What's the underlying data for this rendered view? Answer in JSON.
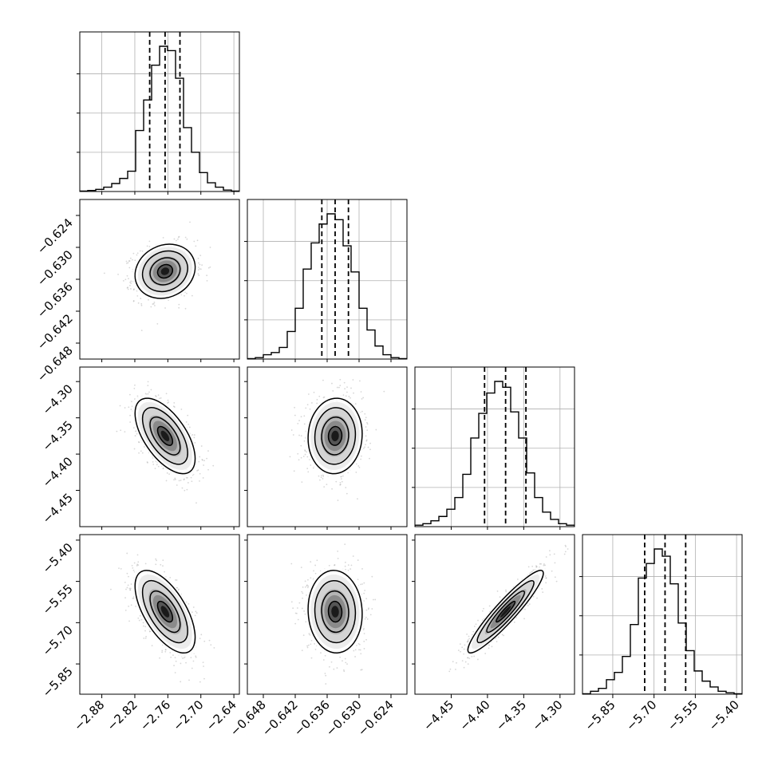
{
  "chart_data": {
    "type": "corner",
    "parameters": [
      {
        "mean": -2.765,
        "sd": 0.0273,
        "range": [
          -2.92,
          -2.63
        ],
        "quantiles": [
          -2.793,
          -2.765,
          -2.738
        ],
        "ticks": [
          -2.88,
          -2.82,
          -2.76,
          -2.7,
          -2.64
        ],
        "tick_labels": [
          "−2.88",
          "−2.82",
          "−2.76",
          "−2.70",
          "−2.64"
        ],
        "histogram": [
          0.003,
          0.007,
          0.015,
          0.03,
          0.055,
          0.09,
          0.14,
          0.42,
          0.63,
          0.87,
          1.0,
          0.97,
          0.78,
          0.44,
          0.27,
          0.13,
          0.06,
          0.03,
          0.01,
          0.003
        ]
      },
      {
        "mean": -0.6345,
        "sd": 0.00254,
        "range": [
          -0.651,
          -0.621
        ],
        "quantiles": [
          -0.637,
          -0.6345,
          -0.632
        ],
        "ticks": [
          -0.648,
          -0.642,
          -0.636,
          -0.63,
          -0.624
        ],
        "tick_labels": [
          "−0.648",
          "−0.642",
          "−0.636",
          "−0.630",
          "−0.624"
        ],
        "histogram": [
          0.003,
          0.01,
          0.03,
          0.045,
          0.08,
          0.19,
          0.35,
          0.62,
          0.8,
          0.93,
          1.0,
          0.96,
          0.78,
          0.6,
          0.35,
          0.2,
          0.09,
          0.03,
          0.01,
          0.003
        ]
      },
      {
        "mean": -4.375,
        "sd": 0.026,
        "range": [
          -4.5,
          -4.28
        ],
        "quantiles": [
          -4.404,
          -4.375,
          -4.347
        ],
        "ticks": [
          -4.45,
          -4.4,
          -4.35,
          -4.3
        ],
        "tick_labels": [
          "−4.45",
          "−4.40",
          "−4.35",
          "−4.30"
        ],
        "histogram": [
          0.01,
          0.02,
          0.04,
          0.07,
          0.12,
          0.2,
          0.36,
          0.61,
          0.78,
          0.92,
          1.0,
          0.96,
          0.79,
          0.61,
          0.37,
          0.2,
          0.1,
          0.05,
          0.02,
          0.01
        ]
      },
      {
        "mean": -5.66,
        "sd": 0.075,
        "range": [
          -5.96,
          -5.38
        ],
        "quantiles": [
          -5.734,
          -5.66,
          -5.585
        ],
        "ticks": [
          -5.85,
          -5.7,
          -5.55,
          -5.4
        ],
        "tick_labels": [
          "−5.85",
          "−5.70",
          "−5.55",
          "−5.40"
        ],
        "histogram": [
          0.003,
          0.02,
          0.04,
          0.1,
          0.15,
          0.26,
          0.48,
          0.8,
          0.9,
          1.0,
          0.95,
          0.76,
          0.49,
          0.3,
          0.16,
          0.09,
          0.05,
          0.02,
          0.01,
          0.003
        ]
      }
    ],
    "correlations": [
      [
        1.0,
        0.15,
        -0.6,
        -0.62
      ],
      [
        0.15,
        1.0,
        0.05,
        -0.05
      ],
      [
        -0.6,
        0.05,
        1.0,
        0.93
      ],
      [
        -0.62,
        -0.05,
        0.93,
        1.0
      ]
    ],
    "quantile_style": "dashed",
    "contour_levels_sigma": [
      0.5,
      1.0,
      1.5,
      2.0
    ],
    "grid": true
  }
}
